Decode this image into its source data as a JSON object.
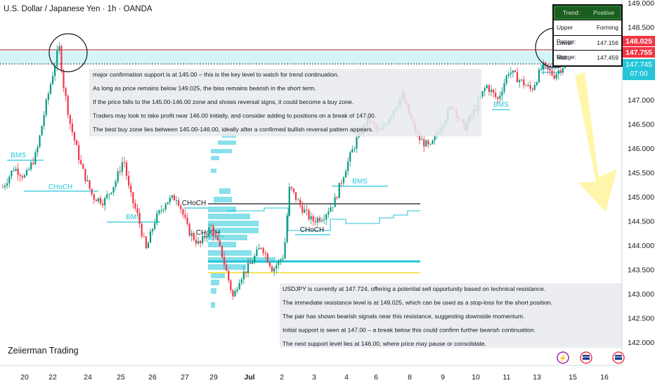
{
  "header": {
    "title": "U.S. Dollar / Japanese Yen · 1h · OANDA"
  },
  "watermark": "Zeiierman Trading",
  "colors": {
    "bull": "#089981",
    "bear": "#f23645",
    "structure": "#26c6da",
    "level": "#f7e65b",
    "zone": "#b2ebf2",
    "arrow": "#fff59d",
    "price_tag": "#f23645",
    "current_tag": "#26c6da"
  },
  "info_table": {
    "headers": [
      "Trend:",
      "Positive"
    ],
    "rows": [
      [
        "Upper Range:",
        "Forming"
      ],
      [
        "Lower Range:",
        "147.156"
      ],
      [
        "Mid:",
        "147.459"
      ]
    ]
  },
  "price_tags": {
    "tag1": "148.025",
    "tag2": "147.755",
    "current": "147.745",
    "current_time": "07:00"
  },
  "notes_top": [
    "major confirmation support is at 145.00 – this is the key level to watch for trend continuation.",
    "As long as price remains below 149.025, the bias remains bearish in the short term.",
    "If the price falls to the 145.00-146.00 zone and shows reversal signs, it could become a buy zone.",
    "Traders may look to take profit near 146.00 initially, and consider adding to positions on a break of 147.00.",
    "The best buy zone lies between 145.00-146.00, ideally after a confirmed bullish reversal pattern appears."
  ],
  "notes_bottom": [
    "USDJPY is currently at 147.724, offering a potential sell opportunity based on technical resistance.",
    "The immediate resistance level is at 149.025, which can be used as a stop-loss for the short position.",
    "The pair has shown bearish signals near this resistance, suggesting downside momentum.",
    "Initial support is seen at 147.00 – a break below this could confirm further bearish continuation.",
    "The next support level lies at 146.00, where price may pause or consolidate."
  ],
  "structure_labels": [
    "BMS",
    "CHoCH",
    "BMS",
    "CHoCH",
    "CHoCH",
    "BMS",
    "CHoCH",
    "BMS",
    "BMS"
  ],
  "chart_data": {
    "type": "candlestick",
    "title": "U.S. Dollar / Japanese Yen · 1h · OANDA",
    "y_ticks": [
      "149.000",
      "148.500",
      "148.000",
      "147.500",
      "147.000",
      "146.500",
      "146.000",
      "145.500",
      "145.000",
      "144.500",
      "144.000",
      "143.500",
      "143.000",
      "142.500",
      "142.000"
    ],
    "x_ticks": [
      "20",
      "22",
      "24",
      "25",
      "26",
      "27",
      "29",
      "Jul",
      "2",
      "3",
      "4",
      "6",
      "8",
      "9",
      "10",
      "11",
      "13",
      "15",
      "16"
    ],
    "ylim": [
      141.7,
      149.1
    ],
    "approx_close_path": [
      [
        0,
        145.2
      ],
      [
        0.02,
        145.6
      ],
      [
        0.04,
        145.4
      ],
      [
        0.06,
        145.9
      ],
      [
        0.075,
        146.8
      ],
      [
        0.09,
        147.6
      ],
      [
        0.1,
        148.1
      ],
      [
        0.108,
        147.3
      ],
      [
        0.12,
        146.5
      ],
      [
        0.14,
        145.6
      ],
      [
        0.16,
        145.0
      ],
      [
        0.18,
        144.9
      ],
      [
        0.2,
        145.3
      ],
      [
        0.215,
        145.8
      ],
      [
        0.225,
        145.1
      ],
      [
        0.24,
        144.6
      ],
      [
        0.255,
        143.9
      ],
      [
        0.27,
        144.5
      ],
      [
        0.29,
        144.9
      ],
      [
        0.31,
        145.0
      ],
      [
        0.33,
        144.3
      ],
      [
        0.35,
        144.0
      ],
      [
        0.37,
        144.4
      ],
      [
        0.39,
        143.8
      ],
      [
        0.41,
        142.9
      ],
      [
        0.42,
        143.3
      ],
      [
        0.44,
        143.6
      ],
      [
        0.46,
        144.0
      ],
      [
        0.48,
        143.5
      ],
      [
        0.5,
        143.8
      ],
      [
        0.51,
        145.2
      ],
      [
        0.53,
        144.8
      ],
      [
        0.55,
        144.5
      ],
      [
        0.57,
        144.6
      ],
      [
        0.59,
        144.9
      ],
      [
        0.61,
        145.6
      ],
      [
        0.63,
        146.2
      ],
      [
        0.65,
        146.6
      ],
      [
        0.67,
        146.3
      ],
      [
        0.69,
        146.7
      ],
      [
        0.71,
        147.1
      ],
      [
        0.725,
        146.6
      ],
      [
        0.74,
        146.2
      ],
      [
        0.76,
        146.0
      ],
      [
        0.78,
        146.5
      ],
      [
        0.8,
        146.9
      ],
      [
        0.82,
        146.4
      ],
      [
        0.84,
        146.8
      ],
      [
        0.86,
        147.3
      ],
      [
        0.88,
        147.0
      ],
      [
        0.9,
        147.6
      ],
      [
        0.92,
        147.4
      ],
      [
        0.94,
        147.2
      ],
      [
        0.96,
        147.7
      ],
      [
        0.98,
        147.5
      ],
      [
        1.0,
        147.75
      ]
    ],
    "levels": {
      "resistance": 149.025,
      "line_148": 148.025,
      "zone": [
        147.745,
        147.9
      ],
      "black_line": 144.9,
      "blue_line": 143.7,
      "yellow_line": 143.5
    },
    "grid": false,
    "legend": "none"
  }
}
